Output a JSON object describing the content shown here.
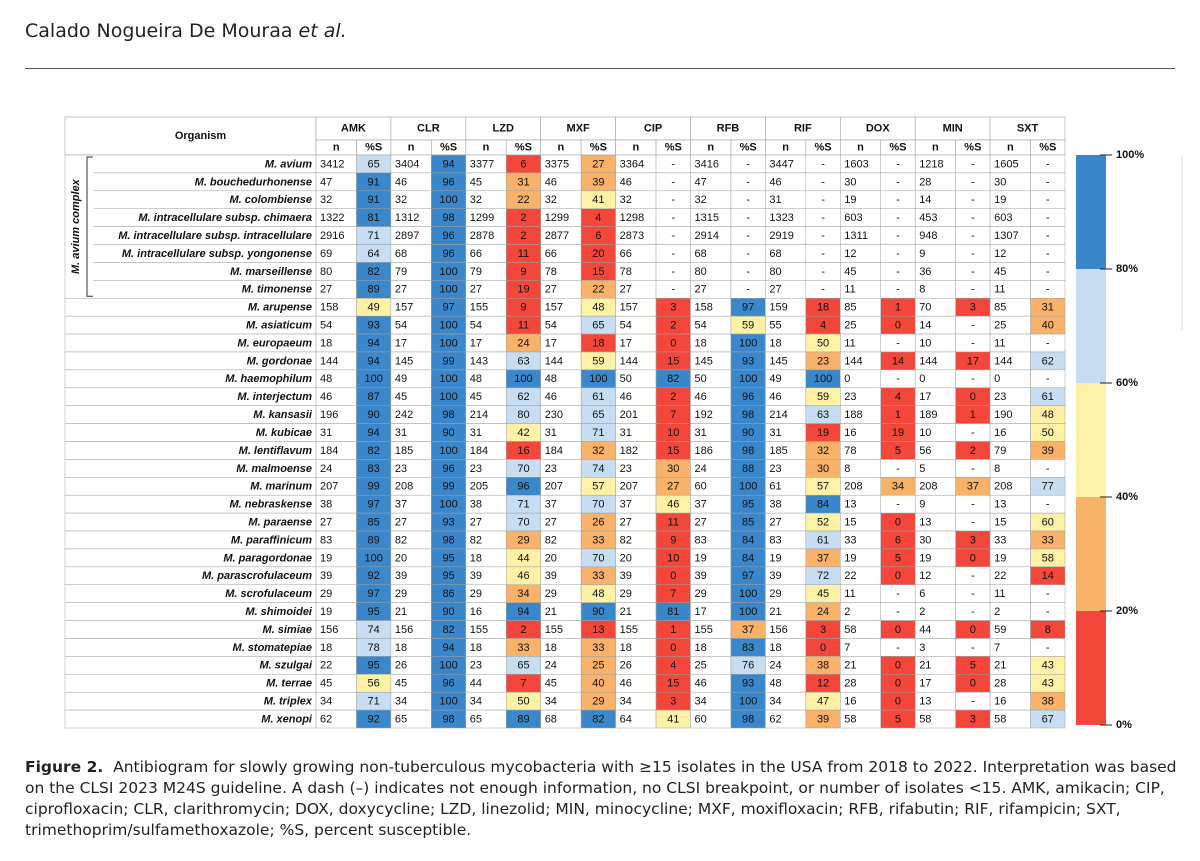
{
  "header": {
    "authors": "Calado Nogueira De Mouraa",
    "etal": "et al."
  },
  "table": {
    "organism_header": "Organism",
    "group_label": "M. avium complex",
    "group_rows": 8,
    "drugs": [
      "AMK",
      "CLR",
      "LZD",
      "MXF",
      "CIP",
      "RFB",
      "RIF",
      "DOX",
      "MIN",
      "SXT"
    ],
    "subheaders": [
      "n",
      "%S"
    ],
    "rows": [
      {
        "organism": "M. avium",
        "values": [
          3412,
          65,
          3404,
          94,
          3377,
          6,
          3375,
          27,
          3364,
          "-",
          3416,
          "-",
          3447,
          "-",
          1603,
          "-",
          1218,
          "-",
          1605,
          "-"
        ]
      },
      {
        "organism": "M. bouchedurhonense",
        "values": [
          47,
          91,
          46,
          96,
          45,
          31,
          46,
          39,
          46,
          "-",
          47,
          "-",
          46,
          "-",
          30,
          "-",
          28,
          "-",
          30,
          "-"
        ]
      },
      {
        "organism": "M. colombiense",
        "values": [
          32,
          91,
          32,
          100,
          32,
          22,
          32,
          41,
          32,
          "-",
          32,
          "-",
          31,
          "-",
          19,
          "-",
          14,
          "-",
          19,
          "-"
        ]
      },
      {
        "organism": "M. intracellulare subsp. chimaera",
        "values": [
          1322,
          81,
          1312,
          98,
          1299,
          2,
          1299,
          4,
          1298,
          "-",
          1315,
          "-",
          1323,
          "-",
          603,
          "-",
          453,
          "-",
          603,
          "-"
        ]
      },
      {
        "organism": "M. intracellulare subsp. intracellulare",
        "values": [
          2916,
          71,
          2897,
          96,
          2878,
          2,
          2877,
          6,
          2873,
          "-",
          2914,
          "-",
          2919,
          "-",
          1311,
          "-",
          948,
          "-",
          1307,
          "-"
        ]
      },
      {
        "organism": "M. intracellulare subsp. yongonense",
        "values": [
          69,
          64,
          68,
          96,
          66,
          11,
          66,
          20,
          66,
          "-",
          68,
          "-",
          68,
          "-",
          12,
          "-",
          9,
          "-",
          12,
          "-"
        ]
      },
      {
        "organism": "M. marseillense",
        "values": [
          80,
          82,
          79,
          100,
          79,
          9,
          78,
          15,
          78,
          "-",
          80,
          "-",
          80,
          "-",
          45,
          "-",
          36,
          "-",
          45,
          "-"
        ]
      },
      {
        "organism": "M. timonense",
        "values": [
          27,
          89,
          27,
          100,
          27,
          19,
          27,
          22,
          27,
          "-",
          27,
          "-",
          27,
          "-",
          11,
          "-",
          8,
          "-",
          11,
          "-"
        ]
      },
      {
        "organism": "M. arupense",
        "values": [
          158,
          49,
          157,
          97,
          155,
          9,
          157,
          48,
          157,
          3,
          158,
          97,
          159,
          18,
          85,
          1,
          70,
          3,
          85,
          31
        ]
      },
      {
        "organism": "M. asiaticum",
        "values": [
          54,
          93,
          54,
          100,
          54,
          11,
          54,
          65,
          54,
          2,
          54,
          59,
          55,
          4,
          25,
          0,
          14,
          "-",
          25,
          40
        ]
      },
      {
        "organism": "M. europaeum",
        "values": [
          18,
          94,
          17,
          100,
          17,
          24,
          17,
          18,
          17,
          0,
          18,
          100,
          18,
          50,
          11,
          "-",
          10,
          "-",
          11,
          "-"
        ]
      },
      {
        "organism": "M. gordonae",
        "values": [
          144,
          94,
          145,
          99,
          143,
          63,
          144,
          59,
          144,
          15,
          145,
          93,
          145,
          23,
          144,
          14,
          144,
          17,
          144,
          62
        ]
      },
      {
        "organism": "M. haemophilum",
        "values": [
          48,
          100,
          49,
          100,
          48,
          100,
          48,
          100,
          50,
          82,
          50,
          100,
          49,
          100,
          0,
          "-",
          0,
          "-",
          0,
          "-"
        ]
      },
      {
        "organism": "M. interjectum",
        "values": [
          46,
          87,
          45,
          100,
          45,
          62,
          46,
          61,
          46,
          2,
          46,
          96,
          46,
          59,
          23,
          4,
          17,
          0,
          23,
          61
        ]
      },
      {
        "organism": "M. kansasii",
        "values": [
          196,
          90,
          242,
          98,
          214,
          80,
          230,
          65,
          201,
          7,
          192,
          98,
          214,
          63,
          188,
          1,
          189,
          1,
          190,
          48
        ]
      },
      {
        "organism": "M. kubicae",
        "values": [
          31,
          94,
          31,
          90,
          31,
          42,
          31,
          71,
          31,
          10,
          31,
          90,
          31,
          19,
          16,
          19,
          10,
          "-",
          16,
          50
        ]
      },
      {
        "organism": "M. lentiflavum",
        "values": [
          184,
          82,
          185,
          100,
          184,
          16,
          184,
          32,
          182,
          15,
          186,
          98,
          185,
          32,
          78,
          5,
          56,
          2,
          79,
          39
        ]
      },
      {
        "organism": "M. malmoense",
        "values": [
          24,
          83,
          23,
          96,
          23,
          70,
          23,
          74,
          23,
          30,
          24,
          88,
          23,
          30,
          8,
          "-",
          5,
          "-",
          8,
          "-"
        ]
      },
      {
        "organism": "M. marinum",
        "values": [
          207,
          99,
          208,
          99,
          205,
          96,
          207,
          57,
          207,
          27,
          60,
          100,
          61,
          57,
          208,
          34,
          208,
          37,
          208,
          77
        ]
      },
      {
        "organism": "M. nebraskense",
        "values": [
          38,
          97,
          37,
          100,
          38,
          71,
          37,
          70,
          37,
          46,
          37,
          95,
          38,
          84,
          13,
          "-",
          9,
          "-",
          13,
          "-"
        ]
      },
      {
        "organism": "M. paraense",
        "values": [
          27,
          85,
          27,
          93,
          27,
          70,
          27,
          26,
          27,
          11,
          27,
          85,
          27,
          52,
          15,
          0,
          13,
          "-",
          15,
          60
        ]
      },
      {
        "organism": "M. paraffinicum",
        "values": [
          83,
          89,
          82,
          98,
          82,
          29,
          82,
          33,
          82,
          9,
          83,
          84,
          83,
          61,
          33,
          6,
          30,
          3,
          33,
          33
        ]
      },
      {
        "organism": "M. paragordonae",
        "values": [
          19,
          100,
          20,
          95,
          18,
          44,
          20,
          70,
          20,
          10,
          19,
          84,
          19,
          37,
          19,
          5,
          19,
          0,
          19,
          58
        ]
      },
      {
        "organism": "M. parascrofulaceum",
        "values": [
          39,
          92,
          39,
          95,
          39,
          46,
          39,
          33,
          39,
          0,
          39,
          97,
          39,
          72,
          22,
          0,
          12,
          "-",
          22,
          14
        ]
      },
      {
        "organism": "M. scrofulaceum",
        "values": [
          29,
          97,
          29,
          86,
          29,
          34,
          29,
          48,
          29,
          7,
          29,
          100,
          29,
          45,
          11,
          "-",
          6,
          "-",
          11,
          "-"
        ]
      },
      {
        "organism": "M. shimoidei",
        "values": [
          19,
          95,
          21,
          90,
          16,
          94,
          21,
          90,
          21,
          81,
          17,
          100,
          21,
          24,
          2,
          "-",
          2,
          "-",
          2,
          "-"
        ]
      },
      {
        "organism": "M. simiae",
        "values": [
          156,
          74,
          156,
          82,
          155,
          2,
          155,
          13,
          155,
          1,
          155,
          37,
          156,
          3,
          58,
          0,
          44,
          0,
          59,
          8
        ]
      },
      {
        "organism": "M. stomatepiae",
        "values": [
          18,
          78,
          18,
          94,
          18,
          33,
          18,
          33,
          18,
          0,
          18,
          83,
          18,
          0,
          7,
          "-",
          3,
          "-",
          7,
          "-"
        ]
      },
      {
        "organism": "M. szulgai",
        "values": [
          22,
          95,
          26,
          100,
          23,
          65,
          24,
          25,
          26,
          4,
          25,
          76,
          24,
          38,
          21,
          0,
          21,
          5,
          21,
          43
        ]
      },
      {
        "organism": "M. terrae",
        "values": [
          45,
          56,
          45,
          96,
          44,
          7,
          45,
          40,
          46,
          15,
          46,
          93,
          48,
          12,
          28,
          0,
          17,
          0,
          28,
          43
        ]
      },
      {
        "organism": "M. triplex",
        "values": [
          34,
          71,
          34,
          100,
          34,
          50,
          34,
          29,
          34,
          3,
          34,
          100,
          34,
          47,
          16,
          0,
          13,
          "-",
          16,
          38
        ]
      },
      {
        "organism": "M. xenopi",
        "values": [
          62,
          92,
          65,
          98,
          65,
          89,
          68,
          82,
          64,
          41,
          60,
          98,
          62,
          39,
          58,
          5,
          58,
          3,
          58,
          67
        ]
      }
    ]
  },
  "legend": {
    "bands": [
      {
        "from": 80,
        "to": 100,
        "color": "#3a87cb"
      },
      {
        "from": 60,
        "to": 80,
        "color": "#c7ddf1"
      },
      {
        "from": 40,
        "to": 60,
        "color": "#fdf1a5"
      },
      {
        "from": 20,
        "to": 40,
        "color": "#f8b26a"
      },
      {
        "from": 0,
        "to": 20,
        "color": "#f2473a"
      }
    ],
    "ticks": [
      {
        "value": 100,
        "label": "100%"
      },
      {
        "value": 80,
        "label": "80%"
      },
      {
        "value": 60,
        "label": "60%"
      },
      {
        "value": 40,
        "label": "40%"
      },
      {
        "value": 20,
        "label": "20%"
      },
      {
        "value": 0,
        "label": "0%"
      }
    ]
  },
  "caption": {
    "label": "Figure 2.",
    "text": "Antibiogram for slowly growing non-tuberculous mycobacteria with ≥15 isolates in the USA from 2018 to 2022. Interpretation was based on the CLSI 2023 M24S guideline. A dash (–) indicates not enough information, no CLSI breakpoint, or number of isolates <15. AMK, amikacin; CIP, ciprofloxacin; CLR, clarithromycin; DOX, doxycycline; LZD, linezolid; MIN, minocycline; MXF, moxifloxacin; RFB, rifabutin; RIF, rifampicin; SXT, trimethoprim/sulfamethoxazole; %S, percent susceptible."
  }
}
